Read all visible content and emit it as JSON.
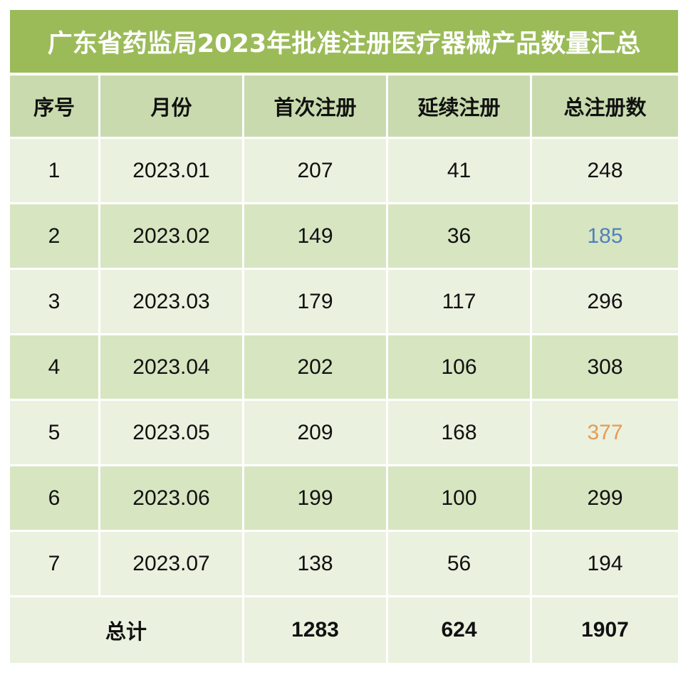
{
  "title": "广东省药监局2023年批准注册医疗器械产品数量汇总",
  "colors": {
    "title_bg": "#9bbb59",
    "header_bg": "#c9dbae",
    "row_light": "#ebf1df",
    "row_dark": "#d7e5c1",
    "highlight_blue": "#4f81bd",
    "highlight_orange": "#e59a56"
  },
  "table": {
    "headers": [
      "序号",
      "月份",
      "首次注册",
      "延续注册",
      "总注册数"
    ],
    "rows": [
      {
        "no": "1",
        "month": "2023.01",
        "first": "207",
        "renew": "41",
        "total": "248",
        "total_color": ""
      },
      {
        "no": "2",
        "month": "2023.02",
        "first": "149",
        "renew": "36",
        "total": "185",
        "total_color": "#4f81bd"
      },
      {
        "no": "3",
        "month": "2023.03",
        "first": "179",
        "renew": "117",
        "total": "296",
        "total_color": ""
      },
      {
        "no": "4",
        "month": "2023.04",
        "first": "202",
        "renew": "106",
        "total": "308",
        "total_color": ""
      },
      {
        "no": "5",
        "month": "2023.05",
        "first": "209",
        "renew": "168",
        "total": "377",
        "total_color": "#e59a56"
      },
      {
        "no": "6",
        "month": "2023.06",
        "first": "199",
        "renew": "100",
        "total": "299",
        "total_color": ""
      },
      {
        "no": "7",
        "month": "2023.07",
        "first": "138",
        "renew": "56",
        "total": "194",
        "total_color": ""
      }
    ],
    "footer": {
      "label": "总计",
      "first": "1283",
      "renew": "624",
      "total": "1907"
    }
  }
}
